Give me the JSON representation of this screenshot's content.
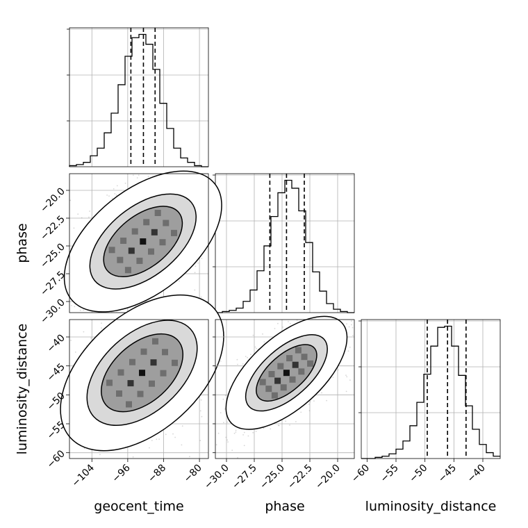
{
  "chart_data": {
    "type": "corner",
    "parameters": [
      "geocent_time",
      "phase",
      "luminosity_distance"
    ],
    "axis_labels": {
      "geocent_time": "geocent_time",
      "phase": "phase",
      "luminosity_distance": "luminosity_distance"
    },
    "ranges": {
      "geocent_time": [
        -109,
        -78
      ],
      "phase": [
        -31,
        -18.5
      ],
      "luminosity_distance": [
        -61,
        -37
      ]
    },
    "ticks": {
      "geocent_time": [
        -104,
        -96,
        -88,
        -80
      ],
      "phase": [
        -30.0,
        -27.5,
        -25.0,
        -22.5,
        -20.0
      ],
      "luminosity_distance": [
        -60,
        -55,
        -50,
        -45,
        -40
      ]
    },
    "tick_labels": {
      "geocent_time": [
        "−104",
        "−96",
        "−88",
        "−80"
      ],
      "phase_x": [
        "−30.0",
        "−27.5",
        "−25.0",
        "−22.5",
        "−20.0"
      ],
      "phase_y": [
        "−20.0",
        "−22.5",
        "−25.0",
        "−27.5",
        "−30.0"
      ],
      "luminosity_distance_x": [
        "−60",
        "−55",
        "−50",
        "−45",
        "−40"
      ],
      "luminosity_distance_y": [
        "−40",
        "−45",
        "−50",
        "−55",
        "−60"
      ]
    },
    "quantiles": {
      "geocent_time": [
        -95.3,
        -92.5,
        -89.9
      ],
      "phase": [
        -26.1,
        -24.6,
        -23.0
      ],
      "luminosity_distance": [
        -49.6,
        -46.1,
        -42.9
      ]
    },
    "histograms": {
      "geocent_time": {
        "edges": [
          -109,
          -107.45,
          -105.9,
          -104.35,
          -102.8,
          -101.25,
          -99.7,
          -98.15,
          -96.6,
          -95.05,
          -93.5,
          -91.95,
          -90.4,
          -88.85,
          -87.3,
          -85.75,
          -84.2,
          -82.65,
          -81.1,
          -79.55,
          -78
        ],
        "counts": [
          1,
          2,
          4,
          10,
          17,
          31,
          49,
          75,
          101,
          118,
          121,
          112,
          89,
          58,
          35,
          17,
          8,
          4,
          1,
          0
        ]
      },
      "phase": {
        "edges": [
          -31,
          -30.375,
          -29.75,
          -29.125,
          -28.5,
          -27.875,
          -27.25,
          -26.625,
          -26.0,
          -25.375,
          -24.75,
          -24.125,
          -23.5,
          -22.875,
          -22.25,
          -21.625,
          -21.0,
          -20.375,
          -19.75,
          -19.125,
          -18.5
        ],
        "counts": [
          0,
          1,
          2,
          4,
          10,
          20,
          37,
          59,
          85,
          106,
          117,
          110,
          90,
          62,
          36,
          19,
          8,
          3,
          1,
          0
        ]
      },
      "luminosity_distance": {
        "edges": [
          -61,
          -59.8,
          -58.6,
          -57.4,
          -56.2,
          -55.0,
          -53.8,
          -52.6,
          -51.4,
          -50.2,
          -49.0,
          -47.8,
          -46.6,
          -45.4,
          -44.2,
          -43.0,
          -41.8,
          -40.6,
          -39.4,
          -38.2,
          -37.0
        ],
        "counts": [
          0,
          0,
          1,
          2,
          4,
          8,
          15,
          28,
          48,
          72,
          96,
          112,
          113,
          96,
          71,
          45,
          25,
          12,
          5,
          2
        ]
      }
    },
    "joint": {
      "phase_vs_geocent_time": {
        "center": [
          -92.6,
          -24.6
        ],
        "direction": [
          8,
          2.6
        ],
        "sd_major": 1,
        "sd_minor": 0.56,
        "contour_sigma": [
          1.0,
          1.35,
          2.0
        ]
      },
      "luminosity_distance_vs_geocent_time": {
        "center": [
          -92.8,
          -46.2
        ],
        "direction": [
          8,
          5.6
        ],
        "sd_major": 1,
        "sd_minor": 0.6,
        "contour_sigma": [
          1.0,
          1.35,
          2.0
        ]
      },
      "luminosity_distance_vs_phase": {
        "center": [
          -24.6,
          -46.2
        ],
        "direction": [
          2.5,
          4.3
        ],
        "sd_major": 1,
        "sd_minor": 0.48,
        "contour_sigma": [
          1.0,
          1.35,
          2.0
        ]
      }
    },
    "grid": true,
    "colors": {
      "hist": "#000000",
      "points": "#8a8a8a",
      "grid": "#b0b0b0",
      "density_dark": "#000000"
    }
  }
}
